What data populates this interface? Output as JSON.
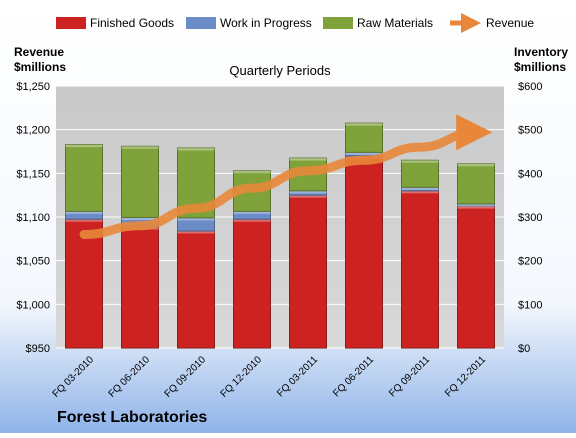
{
  "chart_data": {
    "type": "bar",
    "subtitle": "Quarterly Periods",
    "company": "Forest Laboratories",
    "y_left_label_line1": "Revenue",
    "y_left_label_line2": "$millions",
    "y_right_label_line1": "Inventory",
    "y_right_label_line2": "$millions",
    "categories": [
      "FQ 03-2010",
      "FQ 06-2010",
      "FQ 09-2010",
      "FQ 12-2010",
      "FQ 03-2011",
      "FQ 06-2011",
      "FQ 09-2011",
      "FQ 12-2011"
    ],
    "stacked": true,
    "y_right_lim": [
      0,
      600
    ],
    "y_right_ticks": [
      "$0",
      "$100",
      "$200",
      "$300",
      "$400",
      "$500",
      "$600"
    ],
    "y_left_lim": [
      950,
      1250
    ],
    "y_left_ticks": [
      "$950",
      "$1,000",
      "$1,050",
      "$1,100",
      "$1,150",
      "$1,200",
      "$1,250"
    ],
    "series": [
      {
        "name": "Finished Goods",
        "axis": "right",
        "color": "#cc2222",
        "values": [
          295,
          277,
          268,
          295,
          350,
          440,
          360,
          325
        ]
      },
      {
        "name": "Work in Progress",
        "axis": "right",
        "color": "#6b8cc7",
        "values": [
          18,
          22,
          30,
          18,
          10,
          8,
          8,
          5
        ]
      },
      {
        "name": "Raw Materials",
        "axis": "right",
        "color": "#7fa33a",
        "values": [
          153,
          163,
          160,
          93,
          75,
          67,
          62,
          92
        ]
      },
      {
        "name": "Revenue",
        "axis": "left",
        "type": "line",
        "color": "#e8873a",
        "values": [
          1080,
          1090,
          1110,
          1133,
          1153,
          1165,
          1180,
          1197
        ]
      }
    ],
    "legend_position": "top",
    "grid": true
  }
}
